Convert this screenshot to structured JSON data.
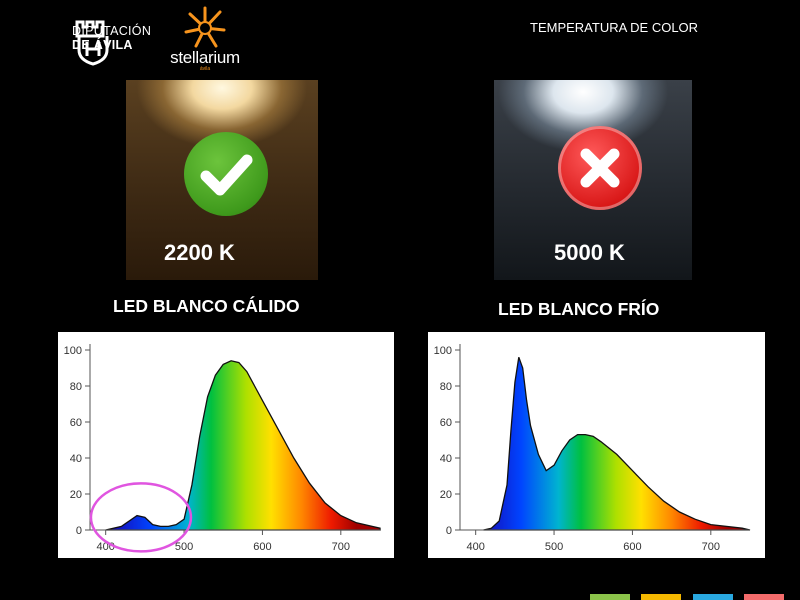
{
  "header": {
    "logo_line1": "DIPUTACIÓN",
    "logo_line2": "DE ÁVILA",
    "stellarium_name": "stellarium",
    "stellarium_sub": "ávila",
    "title": "TEMPERATURA DE COLOR"
  },
  "panels": [
    {
      "temperature": "2200 K",
      "label": "LED BLANCO CÁLIDO",
      "status": "approved",
      "status_icon": "check-icon"
    },
    {
      "temperature": "5000 K",
      "label": "LED BLANCO FRÍO",
      "status": "rejected",
      "status_icon": "cross-icon"
    }
  ],
  "colors": {
    "approved": "#3f9a1c",
    "rejected": "#d91818",
    "highlight_ellipse": "#e055e0"
  },
  "bottom_tabs": [
    "#8bc34a",
    "#f5b800",
    "#29a8e0",
    "#f26b6b"
  ],
  "chart_data": [
    {
      "type": "area",
      "xlim": [
        380,
        750
      ],
      "ylim": [
        0,
        100
      ],
      "x_ticks": [
        400,
        500,
        600,
        700
      ],
      "y_ticks": [
        0,
        20,
        40,
        60,
        80,
        100
      ],
      "grid": false,
      "series": [
        {
          "x": [
            400,
            420,
            440,
            450,
            460,
            470,
            480,
            490,
            500,
            510,
            520,
            530,
            540,
            550,
            560,
            570,
            580,
            590,
            600,
            620,
            640,
            660,
            680,
            700,
            720,
            740,
            750
          ],
          "y": [
            0,
            2,
            8,
            7,
            3,
            2,
            2,
            3,
            6,
            25,
            52,
            74,
            86,
            92,
            94,
            93,
            88,
            80,
            72,
            56,
            40,
            26,
            15,
            8,
            4,
            2,
            1
          ]
        }
      ],
      "annotation": "circle highlighting blue peak near 440 nm"
    },
    {
      "type": "area",
      "xlim": [
        380,
        750
      ],
      "ylim": [
        0,
        100
      ],
      "x_ticks": [
        400,
        500,
        600,
        700
      ],
      "y_ticks": [
        0,
        20,
        40,
        60,
        80,
        100
      ],
      "grid": false,
      "series": [
        {
          "x": [
            410,
            420,
            430,
            440,
            445,
            450,
            455,
            460,
            465,
            470,
            480,
            490,
            500,
            510,
            520,
            530,
            540,
            550,
            560,
            580,
            600,
            620,
            640,
            660,
            680,
            700,
            720,
            740,
            750
          ],
          "y": [
            0,
            1,
            5,
            25,
            55,
            82,
            96,
            90,
            72,
            58,
            42,
            33,
            36,
            44,
            50,
            53,
            53,
            52,
            49,
            42,
            33,
            24,
            16,
            10,
            6,
            3,
            2,
            1,
            0
          ]
        }
      ]
    }
  ]
}
